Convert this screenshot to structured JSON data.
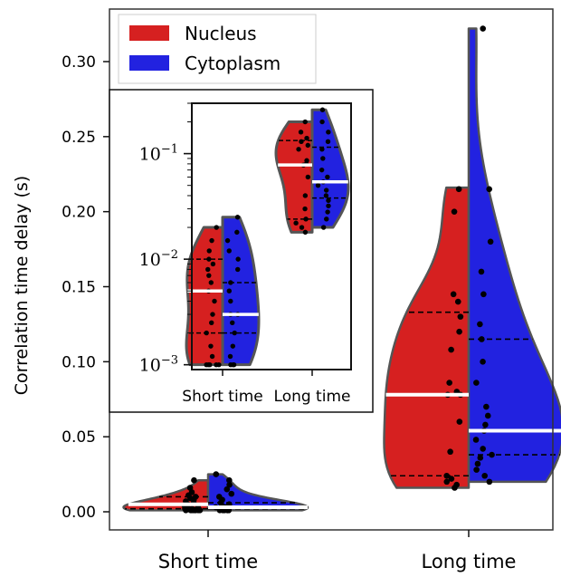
{
  "chart_data": {
    "type": "violin",
    "ylabel": "Correlation time delay (s)",
    "categories": [
      "Short time",
      "Long time"
    ],
    "ylim": [
      0,
      0.33
    ],
    "yticks": [
      "0.00",
      "0.05",
      "0.10",
      "0.15",
      "0.20",
      "0.25",
      "0.30"
    ],
    "legend": {
      "placement": "top-left",
      "entries": [
        {
          "label": "Nucleus",
          "color": "#d62020"
        },
        {
          "label": "Cytoplasm",
          "color": "#2222e0"
        }
      ]
    },
    "series": [
      {
        "name": "Nucleus",
        "color": "#d62020",
        "side": "left",
        "groups": [
          {
            "category": "Short time",
            "points": [
              0.001,
              0.001,
              0.001,
              0.001,
              0.001,
              0.001,
              0.001,
              0.001,
              0.002,
              0.002,
              0.003,
              0.003,
              0.004,
              0.005,
              0.006,
              0.007,
              0.008,
              0.009,
              0.01,
              0.011,
              0.013,
              0.016,
              0.021
            ],
            "median": 0.005,
            "q1": 0.002,
            "q3": 0.01,
            "violin_max": 0.021,
            "violin_width": 0.85
          },
          {
            "category": "Long time",
            "points": [
              0.016,
              0.018,
              0.02,
              0.022,
              0.024,
              0.04,
              0.06,
              0.078,
              0.078,
              0.08,
              0.086,
              0.108,
              0.12,
              0.13,
              0.14,
              0.145,
              0.2,
              0.215
            ],
            "median": 0.078,
            "q1": 0.024,
            "q3": 0.133,
            "violin_max": 0.216,
            "violin_width": 0.85
          }
        ]
      },
      {
        "name": "Cytoplasm",
        "color": "#2222e0",
        "side": "right",
        "groups": [
          {
            "category": "Short time",
            "points": [
              0.001,
              0.001,
              0.001,
              0.001,
              0.001,
              0.001,
              0.001,
              0.002,
              0.002,
              0.003,
              0.003,
              0.003,
              0.004,
              0.005,
              0.006,
              0.008,
              0.01,
              0.012,
              0.015,
              0.018,
              0.021,
              0.025
            ],
            "median": 0.003,
            "q1": 0.002,
            "q3": 0.006,
            "violin_max": 0.025,
            "violin_width": 1.0
          },
          {
            "category": "Long time",
            "points": [
              0.02,
              0.024,
              0.028,
              0.032,
              0.036,
              0.038,
              0.042,
              0.048,
              0.054,
              0.058,
              0.064,
              0.07,
              0.086,
              0.1,
              0.115,
              0.125,
              0.145,
              0.16,
              0.18,
              0.215,
              0.322
            ],
            "median": 0.054,
            "q1": 0.038,
            "q3": 0.115,
            "violin_max": 0.322,
            "violin_width": 0.95
          }
        ]
      }
    ],
    "inset": {
      "yscale": "log",
      "ylim": [
        0.0009,
        0.3
      ],
      "yticks": [
        {
          "value": 0.1,
          "base": "10",
          "exp": "−1"
        },
        {
          "value": 0.01,
          "base": "10",
          "exp": "−2"
        },
        {
          "value": 0.001,
          "base": "10",
          "exp": "−3"
        }
      ],
      "categories": [
        "Short time",
        "Long time"
      ],
      "series": [
        {
          "name": "Nucleus",
          "color": "#d62020",
          "groups": [
            {
              "category": "Short time",
              "points": [
                0.001,
                0.001,
                0.001,
                0.001,
                0.001,
                0.0012,
                0.0015,
                0.002,
                0.0025,
                0.003,
                0.004,
                0.005,
                0.006,
                0.007,
                0.008,
                0.009,
                0.01,
                0.012,
                0.015,
                0.02
              ],
              "median": 0.005,
              "q1": 0.002,
              "q3": 0.01
            },
            {
              "category": "Long time",
              "points": [
                0.018,
                0.02,
                0.022,
                0.024,
                0.03,
                0.04,
                0.06,
                0.078,
                0.08,
                0.086,
                0.11,
                0.12,
                0.13,
                0.14,
                0.16,
                0.2
              ],
              "median": 0.078,
              "q1": 0.024,
              "q3": 0.133
            }
          ]
        },
        {
          "name": "Cytoplasm",
          "color": "#2222e0",
          "groups": [
            {
              "category": "Short time",
              "points": [
                0.001,
                0.001,
                0.001,
                0.0012,
                0.0015,
                0.002,
                0.0025,
                0.003,
                0.003,
                0.004,
                0.005,
                0.006,
                0.008,
                0.01,
                0.012,
                0.015,
                0.018,
                0.025
              ],
              "median": 0.003,
              "q1": 0.002,
              "q3": 0.006
            },
            {
              "category": "Long time",
              "points": [
                0.02,
                0.024,
                0.028,
                0.032,
                0.036,
                0.04,
                0.045,
                0.05,
                0.054,
                0.06,
                0.07,
                0.09,
                0.11,
                0.13,
                0.16,
                0.2,
                0.26
              ],
              "median": 0.054,
              "q1": 0.038,
              "q3": 0.115
            }
          ]
        }
      ]
    }
  }
}
